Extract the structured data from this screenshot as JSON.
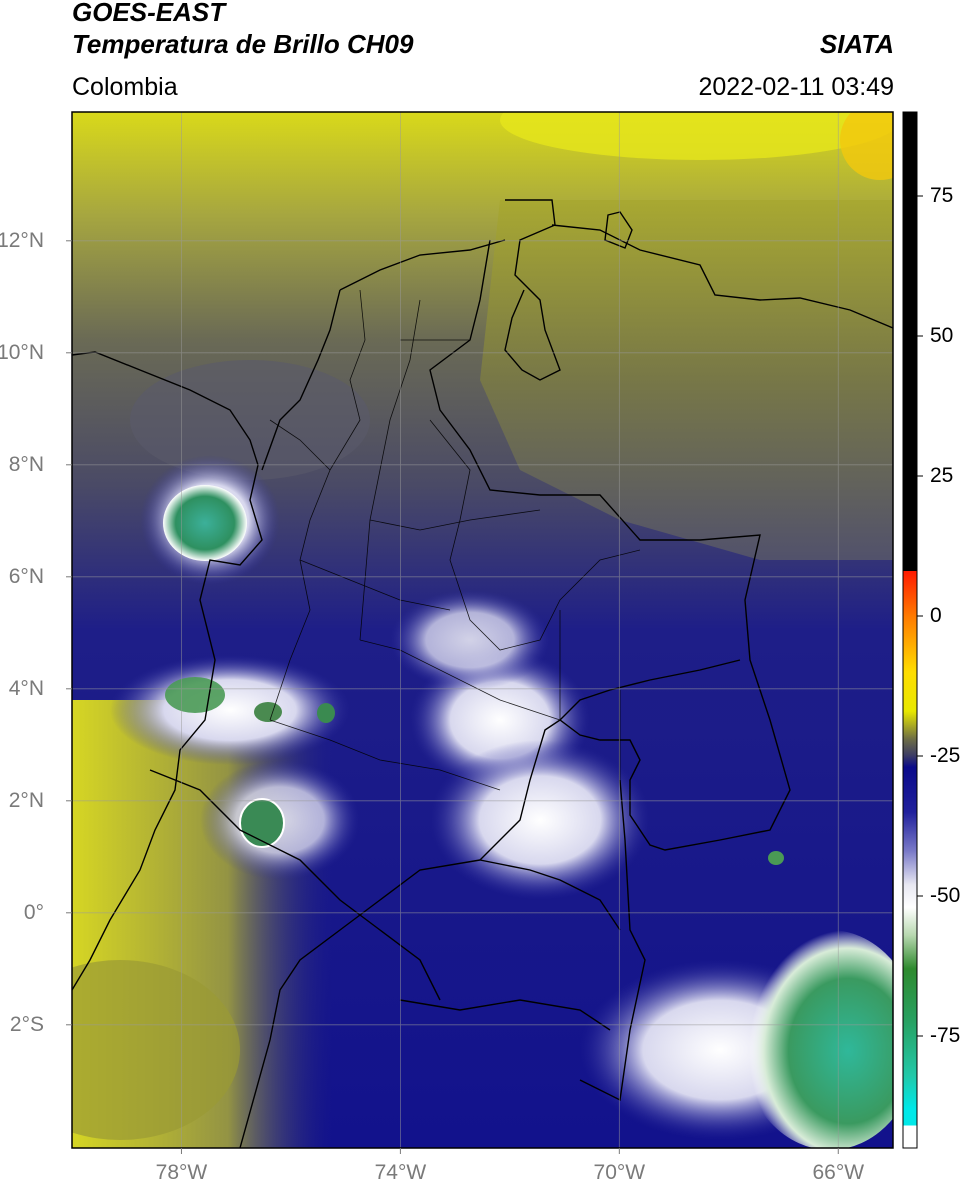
{
  "header": {
    "satellite": "GOES-EAST",
    "product": "Temperatura de Brillo CH09",
    "region": "Colombia",
    "brand": "SIATA",
    "datetime": "2022-02-11 03:49"
  },
  "map": {
    "lat_labels": [
      "12°N",
      "10°N",
      "8°N",
      "6°N",
      "4°N",
      "2°N",
      "0°",
      "2°S"
    ],
    "lat_values": [
      12,
      10,
      8,
      6,
      4,
      2,
      0,
      -2
    ],
    "lon_labels": [
      "78°W",
      "74°W",
      "70°W",
      "66°W"
    ],
    "lon_values": [
      -78,
      -74,
      -70,
      -66
    ],
    "extent": {
      "lon_min": -80,
      "lon_max": -65,
      "lat_min": -4.2,
      "lat_max": 14.3
    },
    "gridlines": true
  },
  "colorbar": {
    "tick_labels": [
      "75",
      "50",
      "25",
      "0",
      "-25",
      "-50",
      "-75"
    ],
    "tick_values": [
      75,
      50,
      25,
      0,
      -25,
      -50,
      -75
    ],
    "range": [
      -95,
      90
    ],
    "stops": [
      {
        "value": 90,
        "color": "#000000"
      },
      {
        "value": 8,
        "color": "#000000"
      },
      {
        "value": 8,
        "color": "#ff1a00"
      },
      {
        "value": 0,
        "color": "#ff7a00"
      },
      {
        "value": -10,
        "color": "#ffdd00"
      },
      {
        "value": -17,
        "color": "#e8e800"
      },
      {
        "value": -22,
        "color": "#6d6d45"
      },
      {
        "value": -25,
        "color": "#3a3a66"
      },
      {
        "value": -27,
        "color": "#0a0a8a"
      },
      {
        "value": -35,
        "color": "#20209c"
      },
      {
        "value": -42,
        "color": "#7a7ac8"
      },
      {
        "value": -48,
        "color": "#e8e8f2"
      },
      {
        "value": -52,
        "color": "#ffffff"
      },
      {
        "value": -57,
        "color": "#b8d8b0"
      },
      {
        "value": -63,
        "color": "#2e8a2e"
      },
      {
        "value": -72,
        "color": "#28a060"
      },
      {
        "value": -82,
        "color": "#22c8a8"
      },
      {
        "value": -88,
        "color": "#00e8e8"
      },
      {
        "value": -91,
        "color": "#00e8e8"
      },
      {
        "value": -91,
        "color": "#ffffff"
      },
      {
        "value": -95,
        "color": "#ffffff"
      }
    ]
  }
}
